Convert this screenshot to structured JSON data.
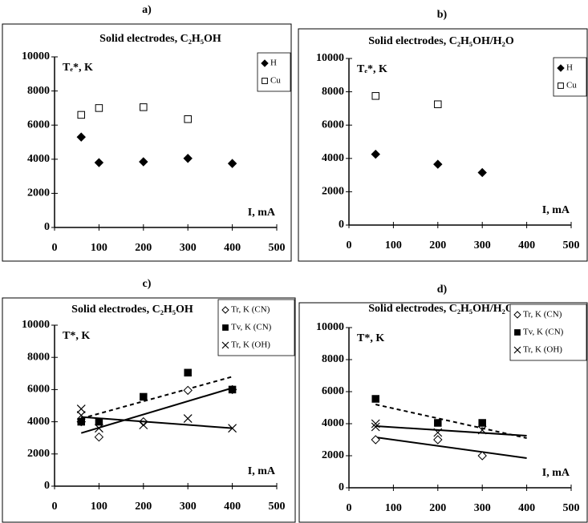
{
  "chart_data": [
    {
      "type": "scatter",
      "panel_label": "a)",
      "title": "Solid electrodes, C₂H₅OH",
      "ylabel": "Tₑ*, K",
      "xlabel": "I, mA",
      "xlim": [
        0,
        500
      ],
      "ylim": [
        0,
        10000
      ],
      "xticks": [
        0,
        100,
        200,
        300,
        400,
        500
      ],
      "yticks": [
        0,
        2000,
        4000,
        6000,
        8000,
        10000
      ],
      "series": [
        {
          "name": "H",
          "marker": "diamond-filled",
          "color": "#000000",
          "x": [
            60,
            100,
            200,
            300,
            400
          ],
          "values": [
            5300,
            3800,
            3850,
            4050,
            3750
          ]
        },
        {
          "name": "Cu",
          "marker": "square-open",
          "color": "#000000",
          "x": [
            60,
            100,
            200,
            300
          ],
          "values": [
            6600,
            7000,
            7050,
            6350
          ]
        }
      ]
    },
    {
      "type": "scatter",
      "panel_label": "b)",
      "title": "Solid electrodes, C₂H₅OH/H₂O",
      "ylabel": "Tₑ*, K",
      "xlabel": "I, mA",
      "xlim": [
        0,
        500
      ],
      "ylim": [
        0,
        10000
      ],
      "xticks": [
        0,
        100,
        200,
        300,
        400,
        500
      ],
      "yticks": [
        0,
        2000,
        4000,
        6000,
        8000,
        10000
      ],
      "series": [
        {
          "name": "H",
          "marker": "diamond-filled",
          "color": "#000000",
          "x": [
            60,
            200,
            300
          ],
          "values": [
            4250,
            3650,
            3150
          ]
        },
        {
          "name": "Cu",
          "marker": "square-open",
          "color": "#000000",
          "x": [
            60,
            200
          ],
          "values": [
            7750,
            7250
          ]
        }
      ]
    },
    {
      "type": "scatter",
      "panel_label": "c)",
      "title": "Solid electrodes, C₂H₅OH",
      "ylabel": "T*, K",
      "xlabel": "I, mA",
      "xlim": [
        0,
        500
      ],
      "ylim": [
        0,
        10000
      ],
      "xticks": [
        0,
        100,
        200,
        300,
        400,
        500
      ],
      "yticks": [
        0,
        2000,
        4000,
        6000,
        8000,
        10000
      ],
      "series": [
        {
          "name": "Tr, K (CN)",
          "marker": "diamond-open",
          "color": "#000000",
          "x": [
            60,
            100,
            200,
            300,
            400
          ],
          "values": [
            4000,
            3050,
            4000,
            5950,
            6000
          ],
          "trend": {
            "x": [
              60,
              400
            ],
            "values": [
              4200,
              6800
            ],
            "dashed": true
          }
        },
        {
          "name": "Tv, K (CN)",
          "marker": "square-filled",
          "color": "#000000",
          "x": [
            60,
            100,
            200,
            300,
            400
          ],
          "values": [
            4000,
            4000,
            5550,
            7050,
            6000
          ],
          "trend": {
            "x": [
              60,
              400
            ],
            "values": [
              3300,
              6100
            ],
            "dashed": false
          }
        },
        {
          "name": "Tr, K (OH)",
          "marker": "x",
          "color": "#000000",
          "x": [
            60,
            60,
            100,
            200,
            300,
            400
          ],
          "values": [
            4800,
            4400,
            3600,
            3800,
            4200,
            3600
          ],
          "trend": {
            "x": [
              60,
              400
            ],
            "values": [
              4300,
              3600
            ],
            "dashed": false
          }
        }
      ]
    },
    {
      "type": "scatter",
      "panel_label": "d)",
      "title": "Solid electrodes, C₂H₅OH/H₂O",
      "ylabel": "T*, K",
      "xlabel": "I, mA",
      "xlim": [
        0,
        500
      ],
      "ylim": [
        0,
        10000
      ],
      "xticks": [
        0,
        100,
        200,
        300,
        400,
        500
      ],
      "yticks": [
        0,
        2000,
        4000,
        6000,
        8000,
        10000
      ],
      "series": [
        {
          "name": "Tr, K (CN)",
          "marker": "diamond-open",
          "color": "#000000",
          "x": [
            60,
            200,
            300
          ],
          "values": [
            3000,
            3000,
            2000
          ],
          "trend": {
            "x": [
              60,
              400
            ],
            "values": [
              3150,
              1850
            ],
            "dashed": false
          }
        },
        {
          "name": "Tv, K (CN)",
          "marker": "square-filled",
          "color": "#000000",
          "x": [
            60,
            200,
            300
          ],
          "values": [
            5550,
            4050,
            4050
          ],
          "trend": {
            "x": [
              60,
              400
            ],
            "values": [
              5200,
              3100
            ],
            "dashed": true
          }
        },
        {
          "name": "Tr, K (OH)",
          "marker": "x",
          "color": "#000000",
          "x": [
            60,
            60,
            200,
            300
          ],
          "values": [
            4000,
            3800,
            3450,
            3600
          ],
          "trend": {
            "x": [
              60,
              400
            ],
            "values": [
              3850,
              3250
            ],
            "dashed": false
          }
        }
      ]
    }
  ]
}
